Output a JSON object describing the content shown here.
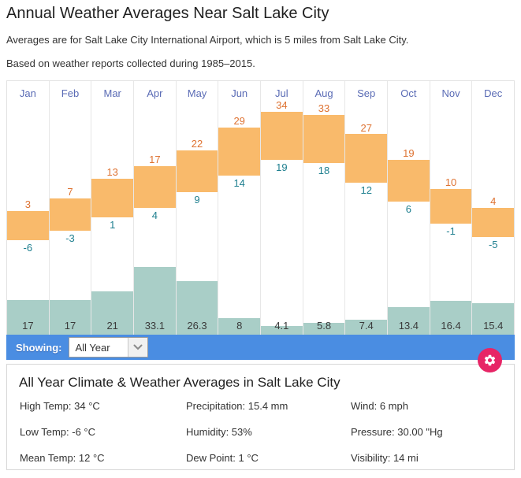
{
  "page": {
    "title": "Annual Weather Averages Near Salt Lake City",
    "intro_line1": "Averages are for Salt Lake City International Airport, which is 5 miles from Salt Lake City.",
    "intro_line2": "Based on weather reports collected during 1985–2015."
  },
  "colors": {
    "temp_bar": "#F9BA6B",
    "high_temp_label": "#DE7231",
    "low_temp_label": "#1E7F8F",
    "precip_bar": "#A9CEC7",
    "month_label": "#5A6BB5",
    "showing_bar": "#4A8DE2",
    "gear_button": "#E72566"
  },
  "icons": {
    "settings": "gear-icon",
    "select_arrow": "chevron-down-icon"
  },
  "chart_data": {
    "type": "bar",
    "title": "Monthly high/low temperature and precipitation",
    "categories": [
      "Jan",
      "Feb",
      "Mar",
      "Apr",
      "May",
      "Jun",
      "Jul",
      "Aug",
      "Sep",
      "Oct",
      "Nov",
      "Dec"
    ],
    "series": [
      {
        "name": "High Temp (°C)",
        "values": [
          3,
          7,
          13,
          17,
          22,
          29,
          34,
          33,
          27,
          19,
          10,
          4
        ]
      },
      {
        "name": "Low Temp (°C)",
        "values": [
          -6,
          -3,
          1,
          4,
          9,
          14,
          19,
          18,
          12,
          6,
          -1,
          -5
        ]
      },
      {
        "name": "Precipitation (mm)",
        "values": [
          17,
          17,
          21,
          33.1,
          26.3,
          8,
          4.1,
          5.8,
          7.4,
          13.4,
          16.4,
          15.4
        ]
      }
    ],
    "temp_axis_range_c": [
      -6,
      34
    ],
    "grid": false,
    "legend_position": "none"
  },
  "showing": {
    "label": "Showing:",
    "selected": "All Year"
  },
  "summary": {
    "title": "All Year Climate & Weather Averages in Salt Lake City",
    "columns": [
      [
        {
          "label": "High Temp",
          "value": "34 °C"
        },
        {
          "label": "Low Temp",
          "value": "-6 °C"
        },
        {
          "label": "Mean Temp",
          "value": "12 °C"
        }
      ],
      [
        {
          "label": "Precipitation",
          "value": "15.4 mm"
        },
        {
          "label": "Humidity",
          "value": "53%"
        },
        {
          "label": "Dew Point",
          "value": "1 °C"
        }
      ],
      [
        {
          "label": "Wind",
          "value": "6 mph"
        },
        {
          "label": "Pressure",
          "value": "30.00 \"Hg"
        },
        {
          "label": "Visibility",
          "value": "14 mi"
        }
      ]
    ]
  }
}
